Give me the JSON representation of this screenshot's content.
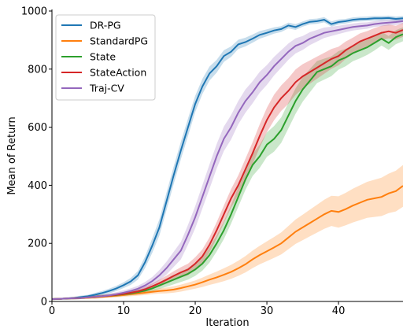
{
  "chart_data": {
    "type": "line",
    "title": "",
    "xlabel": "Iteration",
    "ylabel": "Mean of Return",
    "xlim": [
      0,
      49
    ],
    "ylim": [
      0,
      1000
    ],
    "xticks": [
      0,
      10,
      20,
      30,
      40
    ],
    "yticks": [
      0,
      200,
      400,
      600,
      800,
      1000
    ],
    "grid": false,
    "legend": "top-left",
    "x": [
      0,
      1,
      2,
      3,
      4,
      5,
      6,
      7,
      8,
      9,
      10,
      11,
      12,
      13,
      14,
      15,
      16,
      17,
      18,
      19,
      20,
      21,
      22,
      23,
      24,
      25,
      26,
      27,
      28,
      29,
      30,
      31,
      32,
      33,
      34,
      35,
      36,
      37,
      38,
      39,
      40,
      41,
      42,
      43,
      44,
      45,
      46,
      47,
      48,
      49
    ],
    "series": [
      {
        "name": "DR-PG",
        "color": "#1f77b4",
        "values": [
          8,
          9,
          10,
          12,
          15,
          18,
          23,
          29,
          36,
          45,
          56,
          69,
          90,
          135,
          192,
          255,
          345,
          435,
          520,
          600,
          680,
          740,
          785,
          810,
          845,
          860,
          885,
          893,
          905,
          918,
          925,
          933,
          938,
          950,
          945,
          955,
          963,
          965,
          970,
          955,
          962,
          965,
          970,
          972,
          973,
          975,
          975,
          976,
          973,
          975
        ],
        "band": [
          3,
          3,
          4,
          4,
          5,
          5,
          6,
          7,
          8,
          9,
          10,
          12,
          15,
          20,
          25,
          28,
          30,
          30,
          30,
          30,
          28,
          26,
          24,
          22,
          20,
          18,
          16,
          15,
          14,
          13,
          12,
          11,
          10,
          10,
          10,
          9,
          9,
          9,
          9,
          9,
          9,
          8,
          8,
          8,
          8,
          8,
          8,
          8,
          8,
          8
        ]
      },
      {
        "name": "StandardPG",
        "color": "#ff7f0e",
        "values": [
          8,
          9,
          10,
          11,
          12,
          13,
          14,
          16,
          18,
          20,
          22,
          25,
          27,
          30,
          33,
          36,
          38,
          41,
          46,
          52,
          58,
          66,
          75,
          83,
          92,
          102,
          114,
          128,
          145,
          160,
          173,
          186,
          200,
          220,
          240,
          255,
          270,
          285,
          300,
          312,
          308,
          318,
          330,
          340,
          350,
          355,
          360,
          372,
          380,
          398
        ],
        "band": [
          3,
          3,
          3,
          4,
          4,
          4,
          5,
          5,
          5,
          6,
          6,
          7,
          7,
          8,
          8,
          9,
          10,
          11,
          12,
          13,
          14,
          16,
          18,
          20,
          22,
          24,
          26,
          28,
          30,
          32,
          34,
          36,
          38,
          40,
          42,
          44,
          46,
          48,
          50,
          52,
          54,
          56,
          58,
          60,
          62,
          64,
          66,
          68,
          70,
          72
        ]
      },
      {
        "name": "State",
        "color": "#2ca02c",
        "values": [
          8,
          9,
          10,
          11,
          12,
          14,
          16,
          18,
          20,
          22,
          25,
          28,
          32,
          37,
          45,
          55,
          65,
          75,
          85,
          95,
          110,
          130,
          160,
          200,
          245,
          300,
          360,
          420,
          470,
          500,
          540,
          560,
          590,
          640,
          690,
          730,
          760,
          790,
          800,
          810,
          830,
          840,
          855,
          865,
          875,
          890,
          905,
          890,
          910,
          920
        ],
        "band": [
          3,
          3,
          3,
          4,
          4,
          4,
          5,
          5,
          5,
          6,
          6,
          7,
          8,
          9,
          10,
          12,
          14,
          16,
          18,
          20,
          22,
          24,
          26,
          28,
          30,
          32,
          34,
          36,
          38,
          40,
          42,
          44,
          44,
          44,
          44,
          42,
          40,
          38,
          36,
          34,
          32,
          30,
          28,
          28,
          26,
          26,
          24,
          24,
          24,
          24
        ]
      },
      {
        "name": "StateAction",
        "color": "#d62728",
        "values": [
          8,
          9,
          10,
          11,
          12,
          14,
          16,
          18,
          20,
          23,
          26,
          30,
          35,
          42,
          52,
          63,
          75,
          88,
          100,
          110,
          130,
          155,
          195,
          245,
          300,
          355,
          400,
          455,
          510,
          570,
          625,
          668,
          700,
          725,
          755,
          775,
          790,
          805,
          820,
          835,
          845,
          865,
          880,
          895,
          905,
          915,
          925,
          930,
          925,
          935
        ],
        "band": [
          3,
          3,
          3,
          4,
          4,
          4,
          5,
          5,
          5,
          6,
          6,
          7,
          8,
          9,
          10,
          12,
          14,
          16,
          18,
          20,
          22,
          24,
          26,
          28,
          30,
          32,
          34,
          36,
          38,
          40,
          42,
          44,
          44,
          44,
          44,
          42,
          40,
          38,
          36,
          34,
          32,
          30,
          28,
          28,
          26,
          26,
          24,
          24,
          24,
          24
        ]
      },
      {
        "name": "Traj-CV",
        "color": "#9467bd",
        "values": [
          8,
          9,
          10,
          11,
          12,
          14,
          16,
          18,
          21,
          25,
          30,
          36,
          44,
          55,
          70,
          90,
          115,
          145,
          175,
          230,
          290,
          360,
          430,
          500,
          560,
          600,
          650,
          690,
          720,
          755,
          780,
          810,
          835,
          860,
          880,
          890,
          905,
          915,
          925,
          930,
          935,
          940,
          945,
          948,
          950,
          955,
          958,
          960,
          962,
          965
        ],
        "band": [
          3,
          3,
          3,
          4,
          4,
          4,
          5,
          5,
          6,
          7,
          8,
          9,
          10,
          12,
          14,
          18,
          22,
          26,
          30,
          34,
          38,
          40,
          42,
          42,
          42,
          42,
          40,
          40,
          38,
          36,
          34,
          32,
          30,
          28,
          26,
          24,
          22,
          20,
          18,
          16,
          14,
          13,
          12,
          12,
          11,
          10,
          10,
          10,
          10,
          10
        ]
      }
    ]
  }
}
